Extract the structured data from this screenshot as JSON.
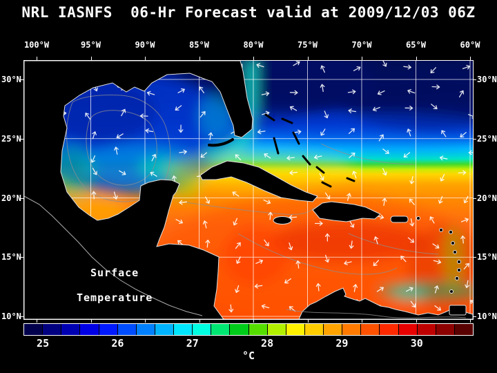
{
  "title": "NRL IASNFS  06-Hr Forecast valid at 2009/12/03 06Z",
  "map": {
    "lon_labels": [
      "100°W",
      "95°W",
      "90°W",
      "85°W",
      "80°W",
      "75°W",
      "70°W",
      "65°W",
      "60°W"
    ],
    "lat_labels": [
      "30°N",
      "25°N",
      "20°N",
      "15°N",
      "10°N"
    ],
    "overlay_label_line1": "Surface",
    "overlay_label_line2": "Temperature"
  },
  "colorbar": {
    "tick_labels": [
      "25",
      "26",
      "27",
      "28",
      "29",
      "30"
    ],
    "unit": "°C",
    "colors": [
      "#00004D",
      "#000080",
      "#0000B3",
      "#0000E6",
      "#0019FF",
      "#004DFF",
      "#0080FF",
      "#00B3FF",
      "#00E6FF",
      "#00FFE0",
      "#00E673",
      "#00CC1A",
      "#55DD00",
      "#B3F000",
      "#FFF000",
      "#FFCC00",
      "#FFA300",
      "#FF7A00",
      "#FF5200",
      "#FF2900",
      "#E60000",
      "#BF0000",
      "#8C0000",
      "#590000"
    ]
  },
  "chart_data": {
    "type": "heatmap",
    "title": "NRL IASNFS 06-Hr Forecast valid at 2009/12/03 06Z",
    "variable": "Surface Temperature",
    "unit": "°C",
    "lon_ticks": [
      "100°W",
      "95°W",
      "90°W",
      "85°W",
      "80°W",
      "75°W",
      "70°W",
      "65°W",
      "60°W"
    ],
    "lat_ticks": [
      "30°N",
      "25°N",
      "20°N",
      "15°N",
      "10°N"
    ],
    "colorbar_ticks": [
      25,
      26,
      27,
      28,
      29,
      30
    ],
    "colorbar_range": [
      24.75,
      30.75
    ],
    "colorbar_position": "bottom",
    "grid": true,
    "overlays": [
      "surface current vector arrows",
      "coastlines",
      "bathymetry contours"
    ],
    "estimated_region_values_c": [
      {
        "region": "Atlantic north of 27N",
        "temp_c": 24.5
      },
      {
        "region": "Gulf of Mexico interior",
        "temp_c": 25.5
      },
      {
        "region": "Gulf Stream / Florida Straits",
        "temp_c": 27.0
      },
      {
        "region": "22-24N transition band",
        "temp_c": 27.5
      },
      {
        "region": "NW Caribbean",
        "temp_c": 28.5
      },
      {
        "region": "Central and SE Caribbean",
        "temp_c": 29.0
      },
      {
        "region": "Hot spots south of Hispaniola",
        "temp_c": 29.5
      }
    ]
  }
}
